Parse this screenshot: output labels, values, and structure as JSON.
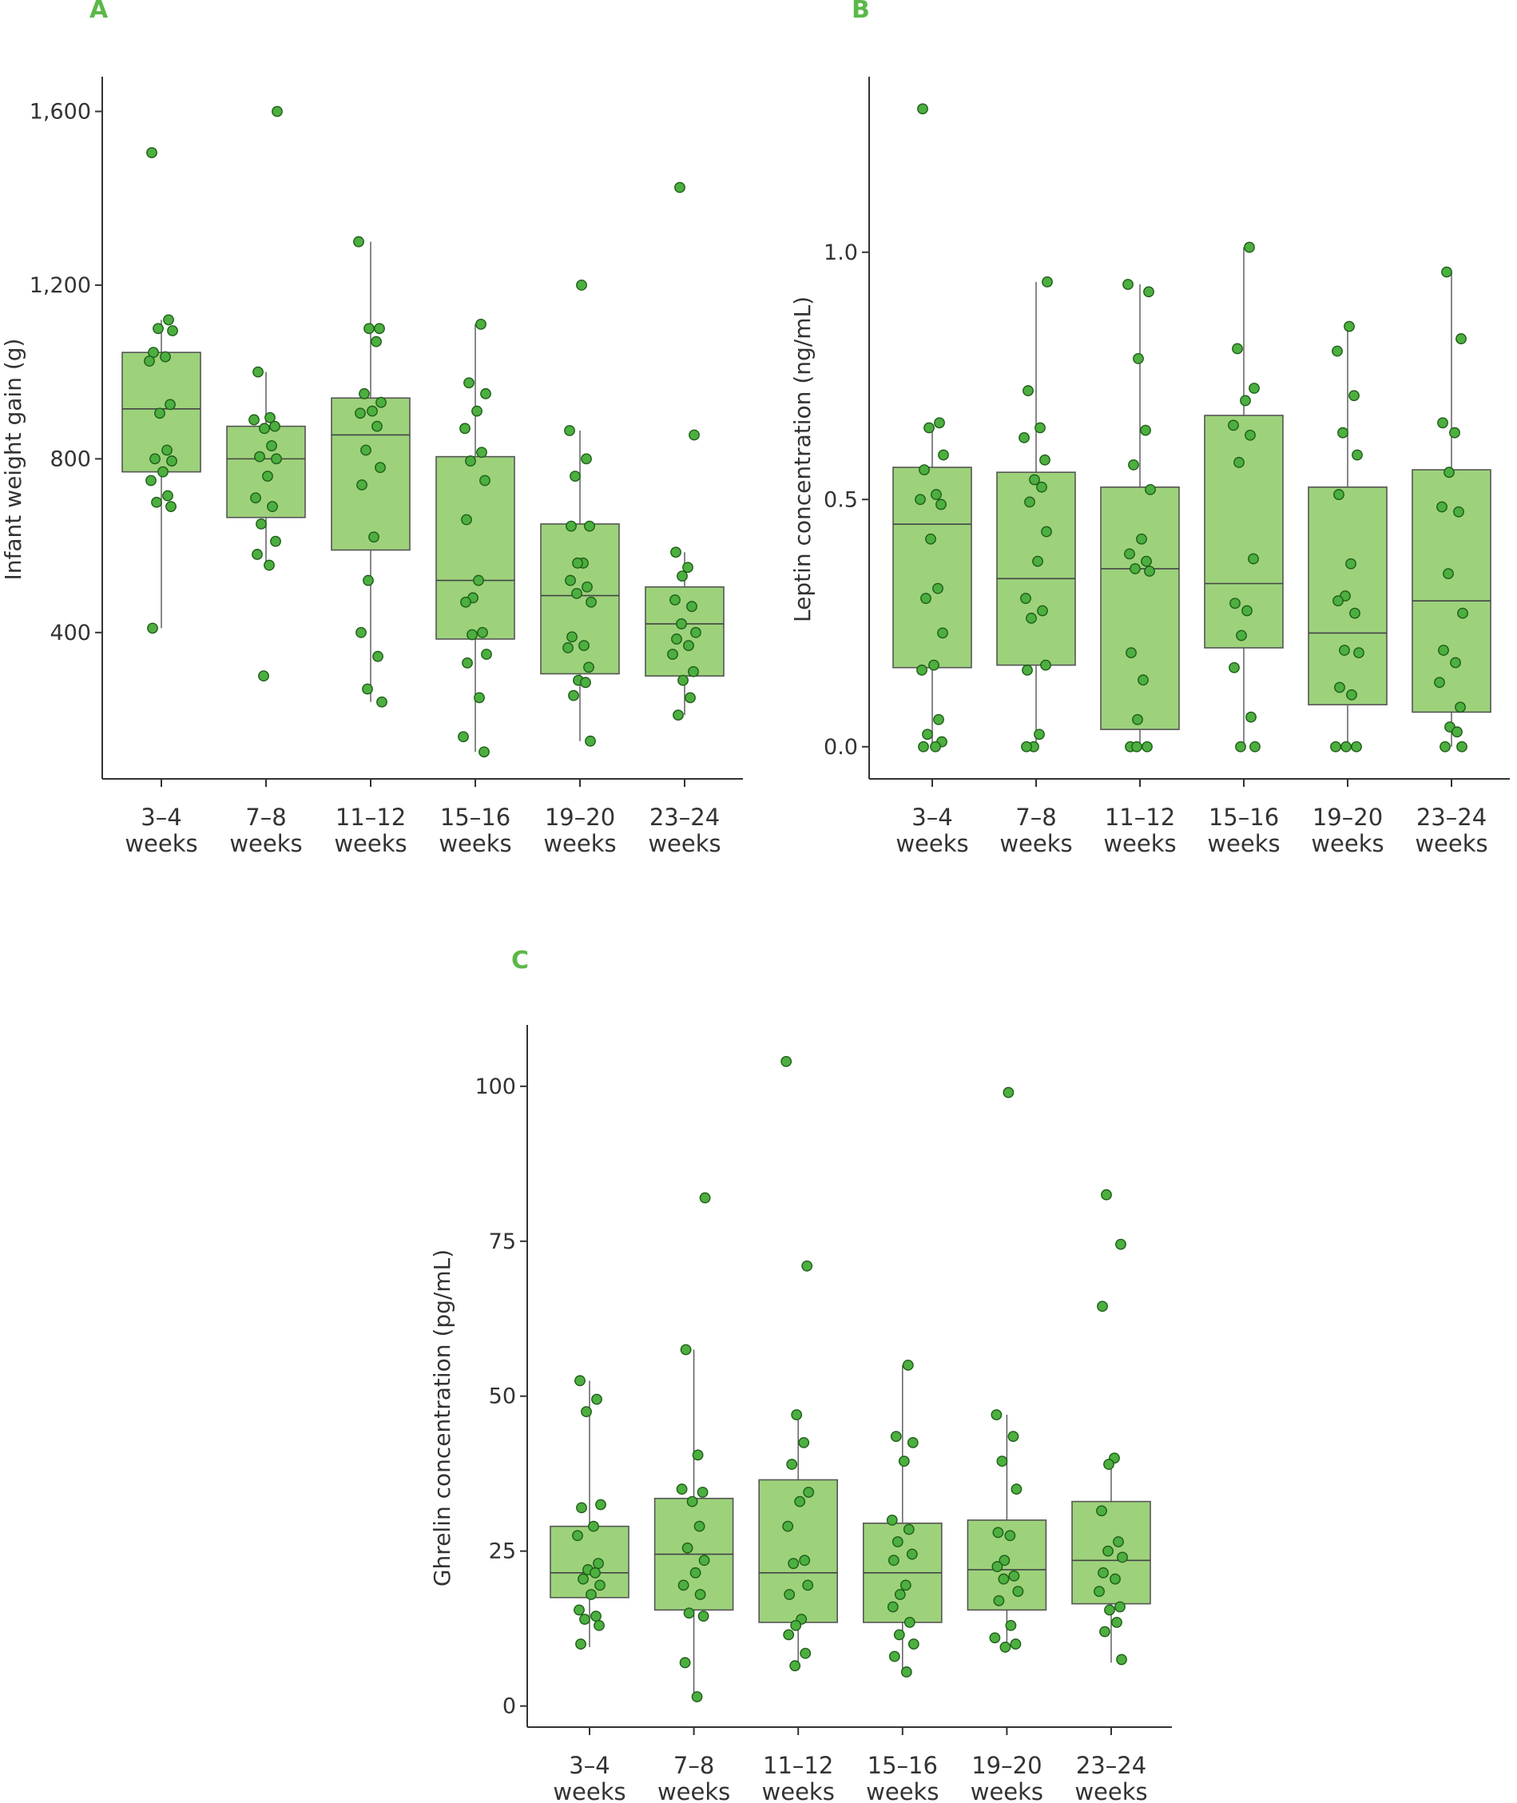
{
  "colors": {
    "accent": "#5cb849",
    "box_fill": "#9dd27b",
    "point_fill": "#4caf3f",
    "point_stroke": "#1e5d18",
    "axis": "#333333"
  },
  "chart_data": [
    {
      "panel": "A",
      "type": "box",
      "title": "",
      "xlabel": "",
      "ylabel": "Infant weight gain (g)",
      "ylim": [
        63,
        1680
      ],
      "yticks": [
        400,
        800,
        1200,
        1600
      ],
      "ytick_labels": [
        "400",
        "800",
        "1,200",
        "1,600"
      ],
      "categories": [
        {
          "line1": "3–4",
          "line2": "weeks"
        },
        {
          "line1": "7–8",
          "line2": "weeks"
        },
        {
          "line1": "11–12",
          "line2": "weeks"
        },
        {
          "line1": "15–16",
          "line2": "weeks"
        },
        {
          "line1": "19–20",
          "line2": "weeks"
        },
        {
          "line1": "23–24",
          "line2": "weeks"
        }
      ],
      "boxes": [
        {
          "q1": 770,
          "median": 915,
          "q3": 1045,
          "whisker_low": 410,
          "whisker_high": 1120
        },
        {
          "q1": 665,
          "median": 800,
          "q3": 875,
          "whisker_low": 555,
          "whisker_high": 1000
        },
        {
          "q1": 590,
          "median": 855,
          "q3": 940,
          "whisker_low": 240,
          "whisker_high": 1300
        },
        {
          "q1": 385,
          "median": 520,
          "q3": 805,
          "whisker_low": 125,
          "whisker_high": 1110
        },
        {
          "q1": 305,
          "median": 485,
          "q3": 650,
          "whisker_low": 150,
          "whisker_high": 865
        },
        {
          "q1": 300,
          "median": 420,
          "q3": 505,
          "whisker_low": 210,
          "whisker_high": 585
        }
      ],
      "points": [
        {
          "category": 0,
          "values": [
            1505,
            1120,
            1100,
            1095,
            1045,
            1035,
            1025,
            925,
            905,
            820,
            800,
            795,
            770,
            750,
            715,
            700,
            690,
            410
          ]
        },
        {
          "category": 1,
          "values": [
            1600,
            1000,
            895,
            890,
            875,
            870,
            830,
            805,
            800,
            760,
            710,
            690,
            650,
            610,
            580,
            555,
            300
          ]
        },
        {
          "category": 2,
          "values": [
            1300,
            1100,
            1100,
            1070,
            950,
            930,
            910,
            905,
            875,
            820,
            780,
            740,
            620,
            520,
            400,
            345,
            270,
            240
          ]
        },
        {
          "category": 3,
          "values": [
            1110,
            975,
            950,
            910,
            870,
            815,
            795,
            750,
            660,
            520,
            480,
            470,
            400,
            395,
            350,
            330,
            250,
            160,
            125
          ]
        },
        {
          "category": 4,
          "values": [
            1200,
            865,
            800,
            760,
            645,
            645,
            560,
            560,
            520,
            505,
            490,
            470,
            390,
            370,
            365,
            320,
            290,
            285,
            255,
            150
          ]
        },
        {
          "category": 5,
          "values": [
            1425,
            855,
            585,
            550,
            530,
            475,
            460,
            420,
            400,
            385,
            370,
            350,
            310,
            290,
            250,
            210
          ]
        }
      ]
    },
    {
      "panel": "B",
      "type": "box",
      "title": "",
      "xlabel": "",
      "ylabel": "Leptin concentration (ng/mL)",
      "ylim": [
        -0.065,
        1.355
      ],
      "yticks": [
        0.0,
        0.5,
        1.0
      ],
      "ytick_labels": [
        "0.0",
        "0.5",
        "1.0"
      ],
      "categories": [
        {
          "line1": "3–4",
          "line2": "weeks"
        },
        {
          "line1": "7–8",
          "line2": "weeks"
        },
        {
          "line1": "11–12",
          "line2": "weeks"
        },
        {
          "line1": "15–16",
          "line2": "weeks"
        },
        {
          "line1": "19–20",
          "line2": "weeks"
        },
        {
          "line1": "23–24",
          "line2": "weeks"
        }
      ],
      "boxes": [
        {
          "q1": 0.16,
          "median": 0.45,
          "q3": 0.565,
          "whisker_low": 0.0,
          "whisker_high": 0.64
        },
        {
          "q1": 0.165,
          "median": 0.34,
          "q3": 0.555,
          "whisker_low": 0.0,
          "whisker_high": 0.94
        },
        {
          "q1": 0.035,
          "median": 0.36,
          "q3": 0.525,
          "whisker_low": 0.0,
          "whisker_high": 0.935
        },
        {
          "q1": 0.2,
          "median": 0.33,
          "q3": 0.67,
          "whisker_low": 0.0,
          "whisker_high": 1.01
        },
        {
          "q1": 0.085,
          "median": 0.23,
          "q3": 0.525,
          "whisker_low": 0.0,
          "whisker_high": 0.85
        },
        {
          "q1": 0.07,
          "median": 0.295,
          "q3": 0.56,
          "whisker_low": 0.0,
          "whisker_high": 0.96
        }
      ],
      "points": [
        {
          "category": 0,
          "values": [
            1.29,
            0.655,
            0.645,
            0.59,
            0.56,
            0.51,
            0.5,
            0.49,
            0.42,
            0.32,
            0.3,
            0.23,
            0.165,
            0.155,
            0.055,
            0.025,
            0.01,
            0.0,
            0.0
          ]
        },
        {
          "category": 1,
          "values": [
            0.94,
            0.72,
            0.645,
            0.625,
            0.58,
            0.54,
            0.525,
            0.495,
            0.435,
            0.375,
            0.3,
            0.275,
            0.26,
            0.165,
            0.155,
            0.025,
            0.0,
            0.0
          ]
        },
        {
          "category": 2,
          "values": [
            0.935,
            0.92,
            0.785,
            0.64,
            0.57,
            0.52,
            0.42,
            0.39,
            0.375,
            0.36,
            0.355,
            0.19,
            0.135,
            0.055,
            0.0,
            0.0,
            0.0
          ]
        },
        {
          "category": 3,
          "values": [
            1.01,
            0.805,
            0.725,
            0.7,
            0.65,
            0.63,
            0.575,
            0.38,
            0.29,
            0.275,
            0.225,
            0.16,
            0.06,
            0.0,
            0.0
          ]
        },
        {
          "category": 4,
          "values": [
            0.85,
            0.8,
            0.71,
            0.635,
            0.59,
            0.51,
            0.37,
            0.305,
            0.295,
            0.27,
            0.195,
            0.19,
            0.12,
            0.105,
            0.0,
            0.0,
            0.0
          ]
        },
        {
          "category": 5,
          "values": [
            0.96,
            0.825,
            0.655,
            0.635,
            0.555,
            0.485,
            0.475,
            0.35,
            0.27,
            0.195,
            0.17,
            0.13,
            0.08,
            0.04,
            0.03,
            0.0,
            0.0
          ]
        }
      ]
    },
    {
      "panel": "C",
      "type": "box",
      "title": "",
      "xlabel": "",
      "ylabel": "Ghrelin concentration (pg/mL)",
      "ylim": [
        -3.4,
        109.9
      ],
      "yticks": [
        0,
        25,
        50,
        75,
        100
      ],
      "ytick_labels": [
        "0",
        "25",
        "50",
        "75",
        "100"
      ],
      "categories": [
        {
          "line1": "3–4",
          "line2": "weeks"
        },
        {
          "line1": "7–8",
          "line2": "weeks"
        },
        {
          "line1": "11–12",
          "line2": "weeks"
        },
        {
          "line1": "15–16",
          "line2": "weeks"
        },
        {
          "line1": "19–20",
          "line2": "weeks"
        },
        {
          "line1": "23–24",
          "line2": "weeks"
        }
      ],
      "boxes": [
        {
          "q1": 17.5,
          "median": 21.5,
          "q3": 29.0,
          "whisker_low": 9.5,
          "whisker_high": 52.5
        },
        {
          "q1": 15.5,
          "median": 24.5,
          "q3": 33.5,
          "whisker_low": 1.5,
          "whisker_high": 57.5
        },
        {
          "q1": 13.5,
          "median": 21.5,
          "q3": 36.5,
          "whisker_low": 6.5,
          "whisker_high": 47.0
        },
        {
          "q1": 13.5,
          "median": 21.5,
          "q3": 29.5,
          "whisker_low": 5.5,
          "whisker_high": 55.0
        },
        {
          "q1": 15.5,
          "median": 22.0,
          "q3": 30.0,
          "whisker_low": 9.5,
          "whisker_high": 47.0
        },
        {
          "q1": 16.5,
          "median": 23.5,
          "q3": 33.0,
          "whisker_low": 7.0,
          "whisker_high": 39.5
        }
      ],
      "points": [
        {
          "category": 0,
          "values": [
            52.5,
            49.5,
            47.5,
            32.5,
            32.0,
            29.0,
            27.5,
            23.0,
            22.0,
            21.5,
            20.5,
            19.5,
            18.0,
            15.5,
            14.5,
            14.0,
            13.0,
            10.0
          ]
        },
        {
          "category": 1,
          "values": [
            82.0,
            57.5,
            40.5,
            35.0,
            34.5,
            33.0,
            29.0,
            25.5,
            23.5,
            21.5,
            19.5,
            18.0,
            15.0,
            14.5,
            7.0,
            1.5
          ]
        },
        {
          "category": 2,
          "values": [
            104.0,
            71.0,
            47.0,
            42.5,
            39.0,
            34.5,
            33.0,
            29.0,
            23.5,
            23.0,
            19.5,
            18.0,
            14.0,
            13.0,
            11.5,
            8.5,
            6.5
          ]
        },
        {
          "category": 3,
          "values": [
            55.0,
            43.5,
            42.5,
            39.5,
            30.0,
            28.5,
            26.5,
            24.5,
            23.5,
            19.5,
            18.0,
            16.0,
            13.5,
            11.5,
            10.0,
            8.0,
            5.5
          ]
        },
        {
          "category": 4,
          "values": [
            99.0,
            47.0,
            43.5,
            39.5,
            35.0,
            28.0,
            27.5,
            23.5,
            22.5,
            21.0,
            20.5,
            18.5,
            17.0,
            13.0,
            11.0,
            10.0,
            9.5
          ]
        },
        {
          "category": 5,
          "values": [
            82.5,
            74.5,
            64.5,
            40.0,
            39.0,
            31.5,
            26.5,
            25.0,
            24.0,
            21.5,
            20.5,
            18.5,
            16.0,
            15.5,
            13.5,
            12.0,
            7.5
          ]
        }
      ]
    }
  ]
}
